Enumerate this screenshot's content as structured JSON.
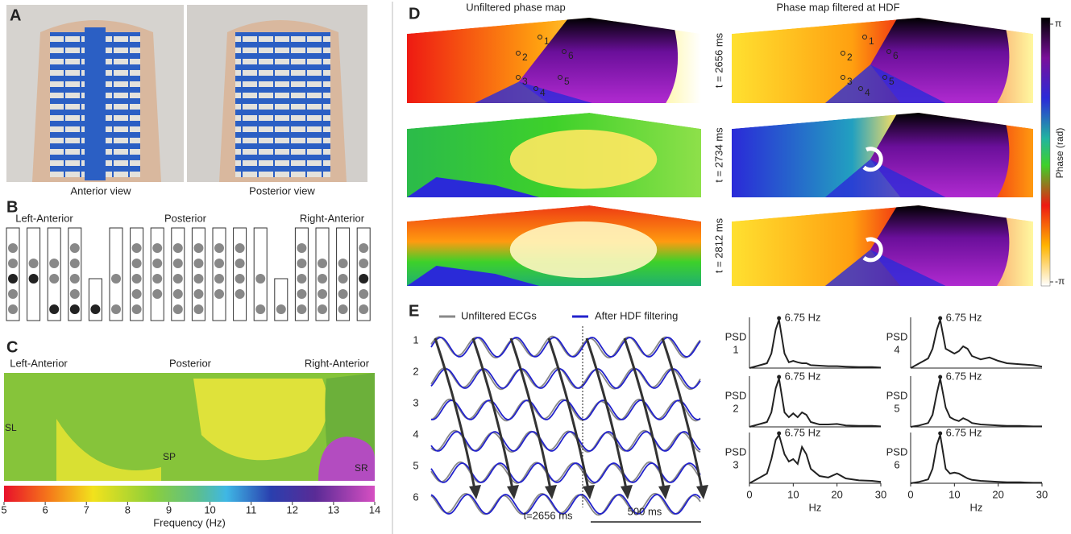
{
  "panel_a": {
    "label": "A",
    "captions": [
      "Anterior view",
      "Posterior view"
    ]
  },
  "panel_b": {
    "label": "B",
    "regions": [
      "Left-Anterior",
      "Posterior",
      "Right-Anterior"
    ]
  },
  "panel_c": {
    "label": "C",
    "regions": [
      "Left-Anterior",
      "Posterior",
      "Right-Anterior"
    ],
    "sites": [
      "SL",
      "SP",
      "SR"
    ],
    "colorbar": {
      "xlim": [
        5,
        14
      ],
      "xticks": [
        5,
        6,
        7,
        8,
        9,
        10,
        11,
        12,
        13,
        14
      ],
      "label": "Frequency (Hz)"
    }
  },
  "panel_d": {
    "label": "D",
    "titles": [
      "Unfiltered phase map",
      "Phase map filtered at HDF"
    ],
    "times": [
      "t = 2656 ms",
      "t = 2734 ms",
      "t = 2812 ms"
    ],
    "points": [
      "1",
      "2",
      "3",
      "4",
      "5",
      "6"
    ],
    "colorbar": {
      "ylim": [
        -3.1416,
        3.1416
      ],
      "yticks": [
        {
          "value": -3.1416,
          "label": "-π"
        },
        {
          "value": 3.1416,
          "label": "π"
        }
      ],
      "label": "Phase (rad)"
    }
  },
  "panel_e": {
    "label": "E",
    "legend": [
      "Unfiltered ECGs",
      "After HDF filtering"
    ],
    "rows": [
      "1",
      "2",
      "3",
      "4",
      "5",
      "6"
    ],
    "marker": "t=2656 ms",
    "scale_bar": "500 ms",
    "psd": {
      "xlim": [
        0,
        30
      ],
      "xticks": [
        0,
        10,
        20,
        30
      ],
      "ylim": [
        0,
        1
      ],
      "xlabel": "Hz",
      "x": [
        0,
        2,
        4,
        5,
        6,
        6.75,
        8,
        9,
        10,
        11,
        12,
        13,
        14,
        16,
        18,
        20,
        22,
        25,
        28,
        30
      ],
      "plots": [
        {
          "label": "PSD",
          "lead": "1",
          "peak": {
            "value": 6.75,
            "label": "6.75 Hz"
          },
          "values": [
            0,
            0.05,
            0.1,
            0.3,
            0.8,
            1,
            0.3,
            0.12,
            0.15,
            0.12,
            0.1,
            0.1,
            0.06,
            0.05,
            0.04,
            0.04,
            0.03,
            0.02,
            0.02,
            0.01
          ]
        },
        {
          "label": "PSD",
          "lead": "2",
          "peak": {
            "value": 6.75,
            "label": "6.75 Hz"
          },
          "values": [
            0,
            0.05,
            0.1,
            0.3,
            0.8,
            1,
            0.3,
            0.2,
            0.28,
            0.2,
            0.3,
            0.25,
            0.1,
            0.05,
            0.05,
            0.06,
            0.03,
            0.02,
            0.02,
            0.01
          ]
        },
        {
          "label": "PSD",
          "lead": "3",
          "peak": {
            "value": 6.75,
            "label": "6.75 Hz"
          },
          "values": [
            0,
            0.1,
            0.2,
            0.5,
            0.9,
            1,
            0.6,
            0.45,
            0.5,
            0.4,
            0.75,
            0.6,
            0.3,
            0.15,
            0.12,
            0.2,
            0.1,
            0.06,
            0.05,
            0.03
          ]
        },
        {
          "label": "PSD",
          "lead": "4",
          "peak": {
            "value": 6.75,
            "label": "6.75 Hz"
          },
          "values": [
            0,
            0.1,
            0.2,
            0.4,
            0.8,
            1,
            0.4,
            0.35,
            0.3,
            0.35,
            0.45,
            0.4,
            0.25,
            0.18,
            0.22,
            0.15,
            0.1,
            0.08,
            0.06,
            0.03
          ]
        },
        {
          "label": "PSD",
          "lead": "5",
          "peak": {
            "value": 6.75,
            "label": "6.75 Hz"
          },
          "values": [
            0,
            0.03,
            0.08,
            0.25,
            0.7,
            1,
            0.4,
            0.2,
            0.15,
            0.12,
            0.18,
            0.14,
            0.08,
            0.05,
            0.04,
            0.03,
            0.02,
            0.02,
            0.01,
            0.01
          ]
        },
        {
          "label": "PSD",
          "lead": "6",
          "peak": {
            "value": 6.75,
            "label": "6.75 Hz"
          },
          "values": [
            0,
            0.03,
            0.08,
            0.3,
            0.8,
            1,
            0.3,
            0.2,
            0.22,
            0.2,
            0.15,
            0.1,
            0.07,
            0.05,
            0.04,
            0.03,
            0.02,
            0.02,
            0.01,
            0.01
          ]
        }
      ]
    }
  }
}
